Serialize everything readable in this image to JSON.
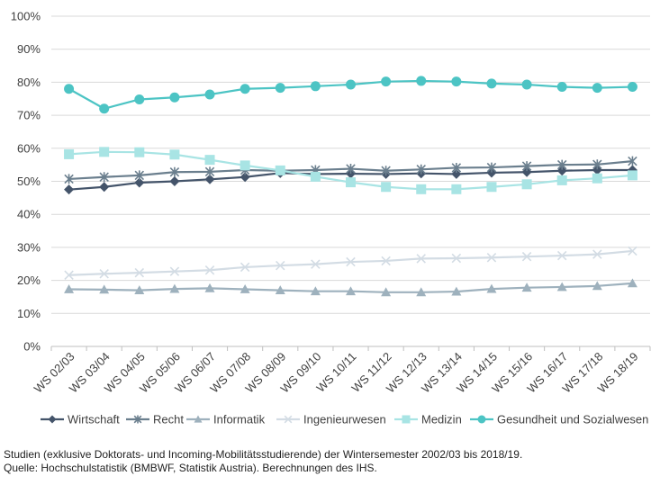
{
  "chart_data": {
    "type": "line",
    "categories": [
      "WS 02/03",
      "WS 03/04",
      "WS 04/05",
      "WS 05/06",
      "WS 06/07",
      "WS 07/08",
      "WS 08/09",
      "WS 09/10",
      "WS 10/11",
      "WS 11/12",
      "WS 12/13",
      "WS 13/14",
      "WS 14/15",
      "WS 15/16",
      "WS 16/17",
      "WS 17/18",
      "WS 18/19"
    ],
    "y_ticks": [
      "0%",
      "10%",
      "20%",
      "30%",
      "40%",
      "50%",
      "60%",
      "70%",
      "80%",
      "90%",
      "100%"
    ],
    "ylim": [
      0,
      100
    ],
    "grid": "horizontal",
    "legend_position": "bottom",
    "series": [
      {
        "name": "Wirtschaft",
        "color": "#44546a",
        "marker": "diamond",
        "values": [
          47.5,
          48.3,
          49.6,
          50.0,
          50.6,
          51.3,
          52.5,
          52.2,
          52.3,
          52.2,
          52.4,
          52.2,
          52.6,
          52.8,
          53.2,
          53.4,
          53.4
        ]
      },
      {
        "name": "Recht",
        "color": "#6b7f8e",
        "marker": "star",
        "values": [
          50.7,
          51.3,
          51.8,
          52.8,
          52.9,
          53.4,
          53.2,
          53.4,
          53.8,
          53.2,
          53.6,
          54.1,
          54.2,
          54.6,
          55.0,
          55.1,
          56.1
        ]
      },
      {
        "name": "Informatik",
        "color": "#9eb1bd",
        "marker": "triangle",
        "values": [
          17.3,
          17.2,
          17.0,
          17.4,
          17.6,
          17.3,
          17.0,
          16.7,
          16.7,
          16.4,
          16.4,
          16.6,
          17.4,
          17.8,
          18.0,
          18.3,
          19.1
        ]
      },
      {
        "name": "Ingenieurwesen",
        "color": "#d3dce4",
        "marker": "x",
        "values": [
          21.6,
          22.0,
          22.3,
          22.7,
          23.1,
          24.0,
          24.5,
          24.9,
          25.6,
          25.9,
          26.6,
          26.7,
          26.9,
          27.2,
          27.5,
          27.9,
          28.9
        ]
      },
      {
        "name": "Medizin",
        "color": "#a8e4e4",
        "marker": "square",
        "values": [
          58.2,
          58.9,
          58.8,
          58.1,
          56.5,
          54.8,
          53.3,
          51.4,
          49.7,
          48.3,
          47.6,
          47.6,
          48.3,
          49.1,
          50.3,
          50.9,
          51.8
        ]
      },
      {
        "name": "Gesundheit und Sozialwesen",
        "color": "#4cc4c4",
        "marker": "circle",
        "values": [
          78.0,
          72.0,
          74.8,
          75.4,
          76.3,
          78.0,
          78.3,
          78.8,
          79.3,
          80.2,
          80.4,
          80.2,
          79.6,
          79.3,
          78.6,
          78.3,
          78.6
        ]
      }
    ]
  },
  "caption": {
    "line1": "Studien (exklusive Doktorats- und Incoming-Mobilitätsstudierende) der Wintersemester 2002/03 bis 2018/19.",
    "line2": "Quelle: Hochschulstatistik (BMBWF, Statistik Austria). Berechnungen des IHS."
  }
}
